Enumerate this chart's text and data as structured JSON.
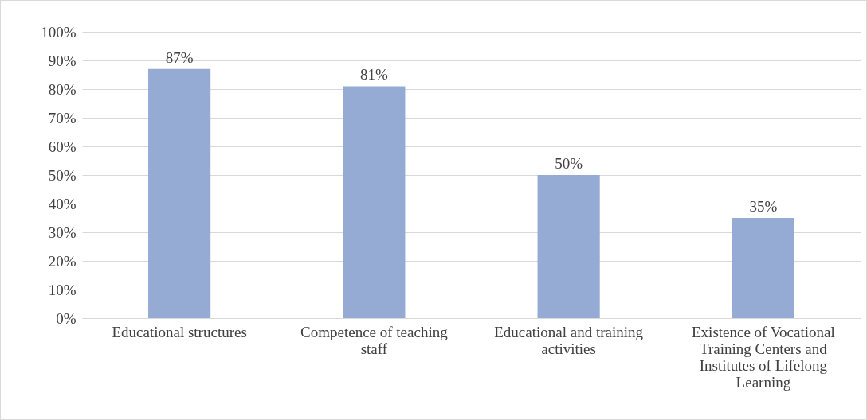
{
  "chart_data": {
    "type": "bar",
    "categories": [
      "Educational structures",
      "Competence of teaching staff",
      "Educational and training activities",
      "Existence of Vocational Training Centers and Institutes of Lifelong Learning"
    ],
    "values": [
      87,
      81,
      50,
      35
    ],
    "value_labels": [
      "87%",
      "81%",
      "50%",
      "35%"
    ],
    "color": "#95abd3",
    "ylim": [
      0,
      100
    ],
    "yticks": [
      {
        "value": 0,
        "label": "0%"
      },
      {
        "value": 10,
        "label": "10%"
      },
      {
        "value": 20,
        "label": "20%"
      },
      {
        "value": 30,
        "label": "30%"
      },
      {
        "value": 40,
        "label": "40%"
      },
      {
        "value": 50,
        "label": "50%"
      },
      {
        "value": 60,
        "label": "60%"
      },
      {
        "value": 70,
        "label": "70%"
      },
      {
        "value": 80,
        "label": "80%"
      },
      {
        "value": 90,
        "label": "90%"
      },
      {
        "value": 100,
        "label": "100%"
      }
    ],
    "grid": "y"
  }
}
